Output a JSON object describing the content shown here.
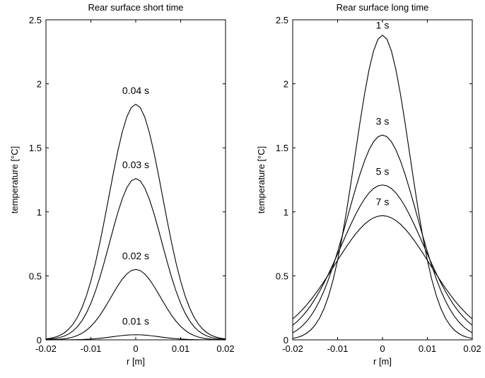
{
  "chart_data": [
    {
      "type": "line",
      "title": "Rear surface short time",
      "xlabel": "r [m]",
      "ylabel": "temperature [°C]",
      "xlim": [
        -0.02,
        0.02
      ],
      "ylim": [
        0,
        2.5
      ],
      "xticks": [
        -0.02,
        -0.01,
        0,
        0.01,
        0.02
      ],
      "xtick_labels": [
        "-0.02",
        "-0.01",
        "0",
        "0.01",
        "0.02"
      ],
      "yticks": [
        0,
        0.5,
        1,
        1.5,
        2,
        2.5
      ],
      "ytick_labels": [
        "0",
        "0.5",
        "1",
        "1.5",
        "2",
        "2.5"
      ],
      "grid": false,
      "legend": "none",
      "series": [
        {
          "name": "0.01 s",
          "peak": 0.04,
          "sigma": 0.0052,
          "annotation": {
            "x": 0.0,
            "y": 0.12
          }
        },
        {
          "name": "0.02 s",
          "peak": 0.55,
          "sigma": 0.0055,
          "annotation": {
            "x": 0.0,
            "y": 0.63
          }
        },
        {
          "name": "0.03 s",
          "peak": 1.26,
          "sigma": 0.0058,
          "annotation": {
            "x": 0.0,
            "y": 1.34
          }
        },
        {
          "name": "0.04 s",
          "peak": 1.84,
          "sigma": 0.006,
          "annotation": {
            "x": 0.0,
            "y": 1.92
          }
        }
      ]
    },
    {
      "type": "line",
      "title": "Rear surface long time",
      "xlabel": "r [m]",
      "ylabel": "temperature [°C]",
      "xlim": [
        -0.02,
        0.02
      ],
      "ylim": [
        0,
        2.5
      ],
      "xticks": [
        -0.02,
        -0.01,
        0,
        0.01,
        0.02
      ],
      "xtick_labels": [
        "-0.02",
        "-0.01",
        "0",
        "0.01",
        "0.02"
      ],
      "yticks": [
        0,
        0.5,
        1,
        1.5,
        2,
        2.5
      ],
      "ytick_labels": [
        "0",
        "0.5",
        "1",
        "1.5",
        "2",
        "2.5"
      ],
      "grid": false,
      "legend": "none",
      "series": [
        {
          "name": "1 s",
          "peak": 2.38,
          "sigma": 0.0061,
          "annotation": {
            "x": 0.0,
            "y": 2.43
          }
        },
        {
          "name": "3 s",
          "peak": 1.6,
          "sigma": 0.0077,
          "annotation": {
            "x": 0.0,
            "y": 1.68
          }
        },
        {
          "name": "5 s",
          "peak": 1.21,
          "sigma": 0.0092,
          "annotation": {
            "x": 0.0,
            "y": 1.29
          }
        },
        {
          "name": "7 s",
          "peak": 0.97,
          "sigma": 0.0106,
          "annotation": {
            "x": 0.0,
            "y": 1.05
          }
        }
      ]
    }
  ]
}
